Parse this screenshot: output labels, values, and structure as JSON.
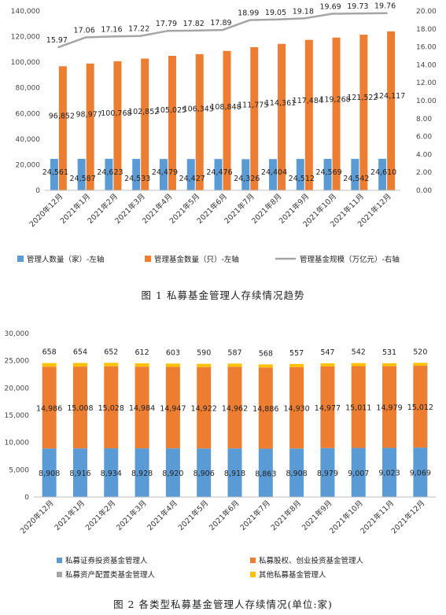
{
  "chart_data": [
    {
      "type": "bar",
      "title": "图 1 私募基金管理人存续情况趋势",
      "categories": [
        "2020年12月",
        "2021年1月",
        "2021年2月",
        "2021年3月",
        "2021年4月",
        "2021年5月",
        "2021年6月",
        "2021年7月",
        "2021年8月",
        "2021年9月",
        "2021年10月",
        "2021年11月",
        "2021年12月"
      ],
      "series": [
        {
          "name": "管理人数量（家）-左轴",
          "type": "bar",
          "axis": "left",
          "color": "#5b9bd5",
          "values": [
            24561,
            24587,
            24623,
            24533,
            24479,
            24427,
            24476,
            24326,
            24404,
            24512,
            24569,
            24542,
            24610
          ]
        },
        {
          "name": "管理基金数量（只）-左轴",
          "type": "bar",
          "axis": "left",
          "color": "#ed7d31",
          "values": [
            96852,
            98977,
            100768,
            102852,
            105025,
            106345,
            108848,
            111775,
            114361,
            117484,
            119268,
            121522,
            124117
          ]
        },
        {
          "name": "管理基金规模（万亿元）-右轴",
          "type": "line",
          "axis": "right",
          "color": "#a5a5a5",
          "values": [
            15.97,
            17.06,
            17.16,
            17.22,
            17.79,
            17.82,
            17.89,
            18.99,
            19.05,
            19.18,
            19.69,
            19.73,
            19.76
          ]
        }
      ],
      "left_ticks": [
        "0",
        "20,000",
        "40,000",
        "60,000",
        "80,000",
        "100,000",
        "120,000",
        "140,000"
      ],
      "right_ticks": [
        "0.00",
        "2.00",
        "4.00",
        "6.00",
        "8.00",
        "10.00",
        "12.00",
        "14.00",
        "16.00",
        "18.00",
        "20.00"
      ],
      "ylim_left": [
        0,
        140000
      ],
      "ylim_right": [
        0,
        20
      ],
      "legend_position": "bottom"
    },
    {
      "type": "bar",
      "stacked": true,
      "title": "图 2 各类型私募基金管理人存续情况(单位:家)",
      "categories": [
        "2020年12月",
        "2021年1月",
        "2021年2月",
        "2021年3月",
        "2021年4月",
        "2021年5月",
        "2021年6月",
        "2021年7月",
        "2021年8月",
        "2021年9月",
        "2021年10月",
        "2021年11月",
        "2021年12月"
      ],
      "series": [
        {
          "name": "私募证券投资基金管理人",
          "color": "#5b9bd5",
          "values": [
            8908,
            8916,
            8934,
            8928,
            8920,
            8906,
            8918,
            8863,
            8908,
            8979,
            9007,
            9023,
            9069
          ]
        },
        {
          "name": "私募股权、创业投资基金管理人",
          "color": "#ed7d31",
          "values": [
            14986,
            15008,
            15028,
            14984,
            14947,
            14922,
            14962,
            14886,
            14930,
            14977,
            15011,
            14979,
            15012
          ]
        },
        {
          "name": "私募资产配置类基金管理人",
          "color": "#a5a5a5",
          "values": [
            9,
            9,
            9,
            9,
            9,
            9,
            9,
            9,
            9,
            9,
            9,
            9,
            9
          ]
        },
        {
          "name": "其他私募基金管理人",
          "color": "#ffc000",
          "values": [
            658,
            654,
            652,
            612,
            603,
            590,
            587,
            568,
            557,
            547,
            542,
            531,
            520
          ]
        }
      ],
      "y_ticks": [
        "0",
        "5,000",
        "10,000",
        "15,000",
        "20,000",
        "25,000",
        "30,000"
      ],
      "ylim": [
        0,
        30000
      ],
      "labeled_series": [
        0,
        1,
        3
      ],
      "legend_position": "bottom"
    }
  ]
}
